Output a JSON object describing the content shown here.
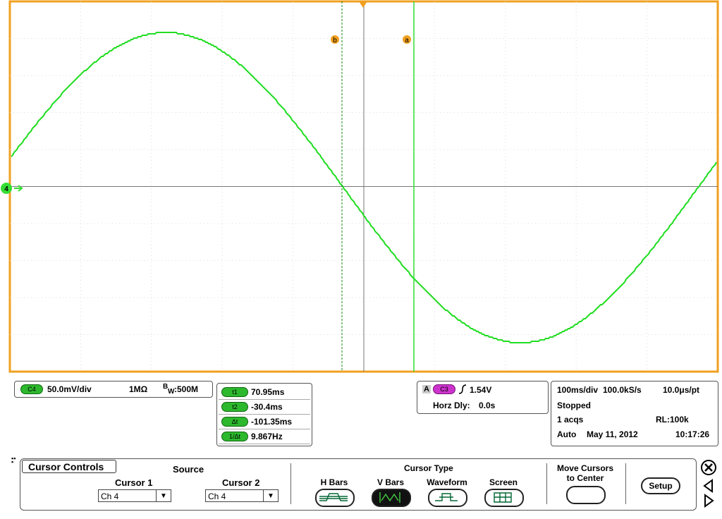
{
  "graticule": {
    "channel_marker": "4",
    "cursor_b_label": "b",
    "cursor_a_label": "a"
  },
  "channel": {
    "badge": "C4",
    "scale": "50.0mV/div",
    "impedance": "1MΩ",
    "bw_b": "B",
    "bw_w": "W",
    "bandwidth": ":500M"
  },
  "cursor_readout": {
    "rows": [
      {
        "label": "t1",
        "value": "70.95ms"
      },
      {
        "label": "t2",
        "value": "-30.4ms"
      },
      {
        "label": "Δt",
        "value": "-101.35ms"
      },
      {
        "label": "1/Δt",
        "value": "9.867Hz"
      }
    ]
  },
  "trigger": {
    "source_prefix": "A",
    "badge": "C3",
    "level": "1.54V",
    "horz_delay_label": "Horz Dly:",
    "horz_delay": "0.0s"
  },
  "acquisition": {
    "timebase": "100ms/div",
    "sample_rate": "100.0kS/s",
    "resolution": "10.0μs/pt",
    "state": "Stopped",
    "acqs": "1 acqs",
    "record_length": "RL:100k",
    "mode": "Auto",
    "date": "May 11, 2012",
    "time": "10:17:26"
  },
  "cursor_controls": {
    "tab": "Cursor Controls",
    "source_title": "Source",
    "cursor1_label": "Cursor 1",
    "cursor1_value": "Ch 4",
    "cursor2_label": "Cursor 2",
    "cursor2_value": "Ch 4",
    "type_title": "Cursor Type",
    "types": [
      "H Bars",
      "V Bars",
      "Waveform",
      "Screen"
    ],
    "move_line1": "Move Cursors",
    "move_line2": "to Center",
    "setup": "Setup"
  }
}
